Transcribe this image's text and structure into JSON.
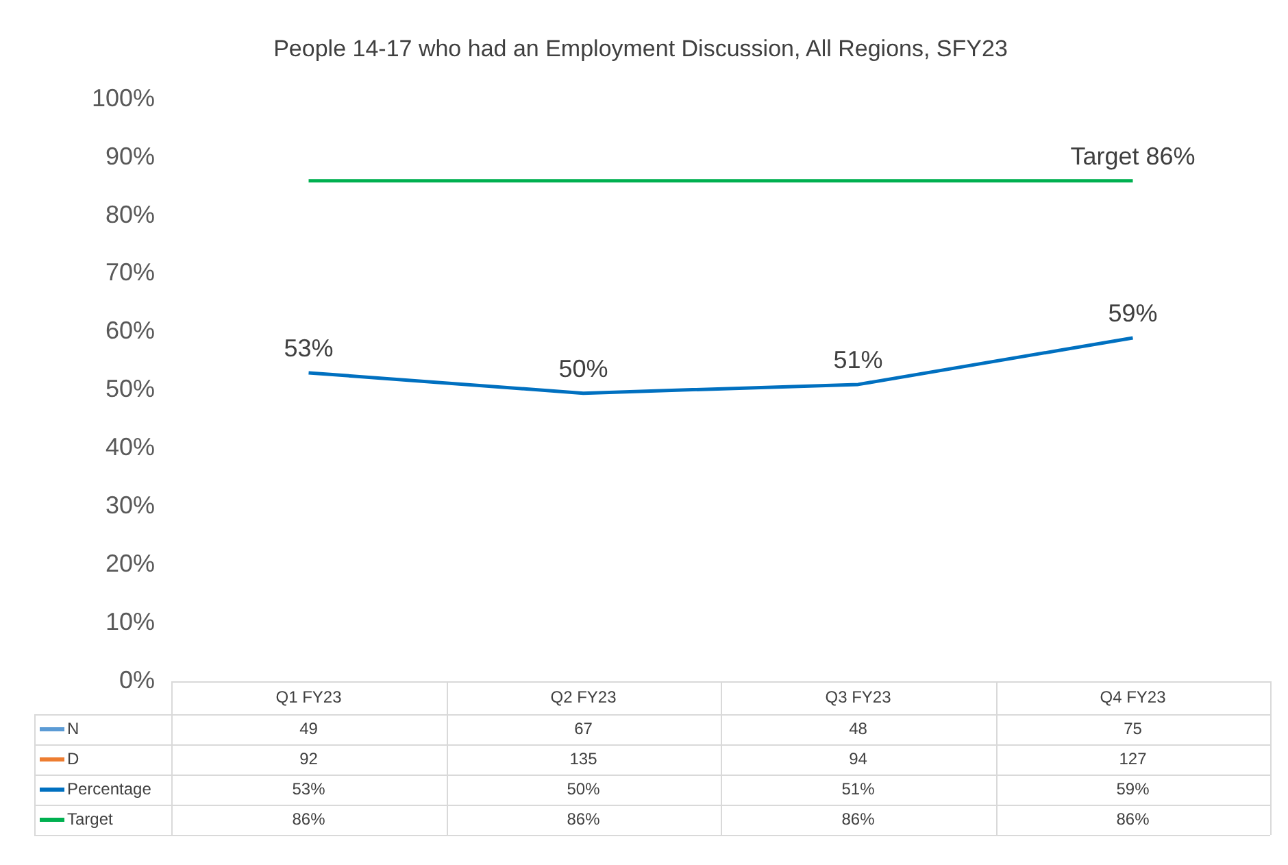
{
  "chart_data": {
    "type": "line",
    "title": "People 14-17 who had an Employment Discussion, All Regions, SFY23",
    "categories": [
      "Q1 FY23",
      "Q2 FY23",
      "Q3 FY23",
      "Q4 FY23"
    ],
    "series": [
      {
        "name": "N",
        "color": "#5b9bd5",
        "values": [
          null,
          null,
          null,
          null
        ],
        "value_labels": [
          "49",
          "67",
          "48",
          "75"
        ]
      },
      {
        "name": "D",
        "color": "#ed7d31",
        "values": [
          null,
          null,
          null,
          null
        ],
        "value_labels": [
          "92",
          "135",
          "94",
          "127"
        ]
      },
      {
        "name": "Percentage",
        "color": "#0070c0",
        "values": [
          53,
          49.5,
          51,
          59
        ],
        "value_labels": [
          "53%",
          "50%",
          "51%",
          "59%"
        ]
      },
      {
        "name": "Target",
        "color": "#00b050",
        "values": [
          86,
          86,
          86,
          86
        ],
        "value_labels": [
          "86%",
          "86%",
          "86%",
          "86%"
        ]
      }
    ],
    "ylim": [
      0,
      100
    ],
    "yticks": [
      {
        "value": 0,
        "label": "0%"
      },
      {
        "value": 10,
        "label": "10%"
      },
      {
        "value": 20,
        "label": "20%"
      },
      {
        "value": 30,
        "label": "30%"
      },
      {
        "value": 40,
        "label": "40%"
      },
      {
        "value": 50,
        "label": "50%"
      },
      {
        "value": 60,
        "label": "60%"
      },
      {
        "value": 70,
        "label": "70%"
      },
      {
        "value": 80,
        "label": "80%"
      },
      {
        "value": 90,
        "label": "90%"
      },
      {
        "value": 100,
        "label": "100%"
      }
    ],
    "annotations": [
      {
        "text": "53%",
        "x": "Q1 FY23",
        "y": 53
      },
      {
        "text": "50%",
        "x": "Q2 FY23",
        "y": 49.5
      },
      {
        "text": "51%",
        "x": "Q3 FY23",
        "y": 51
      },
      {
        "text": "59%",
        "x": "Q4 FY23",
        "y": 59
      },
      {
        "text": "Target 86%",
        "x": "Q4 FY23",
        "y": 86
      }
    ],
    "grid": false,
    "legend": "bottom",
    "marker": "none",
    "line_style": "solid"
  }
}
